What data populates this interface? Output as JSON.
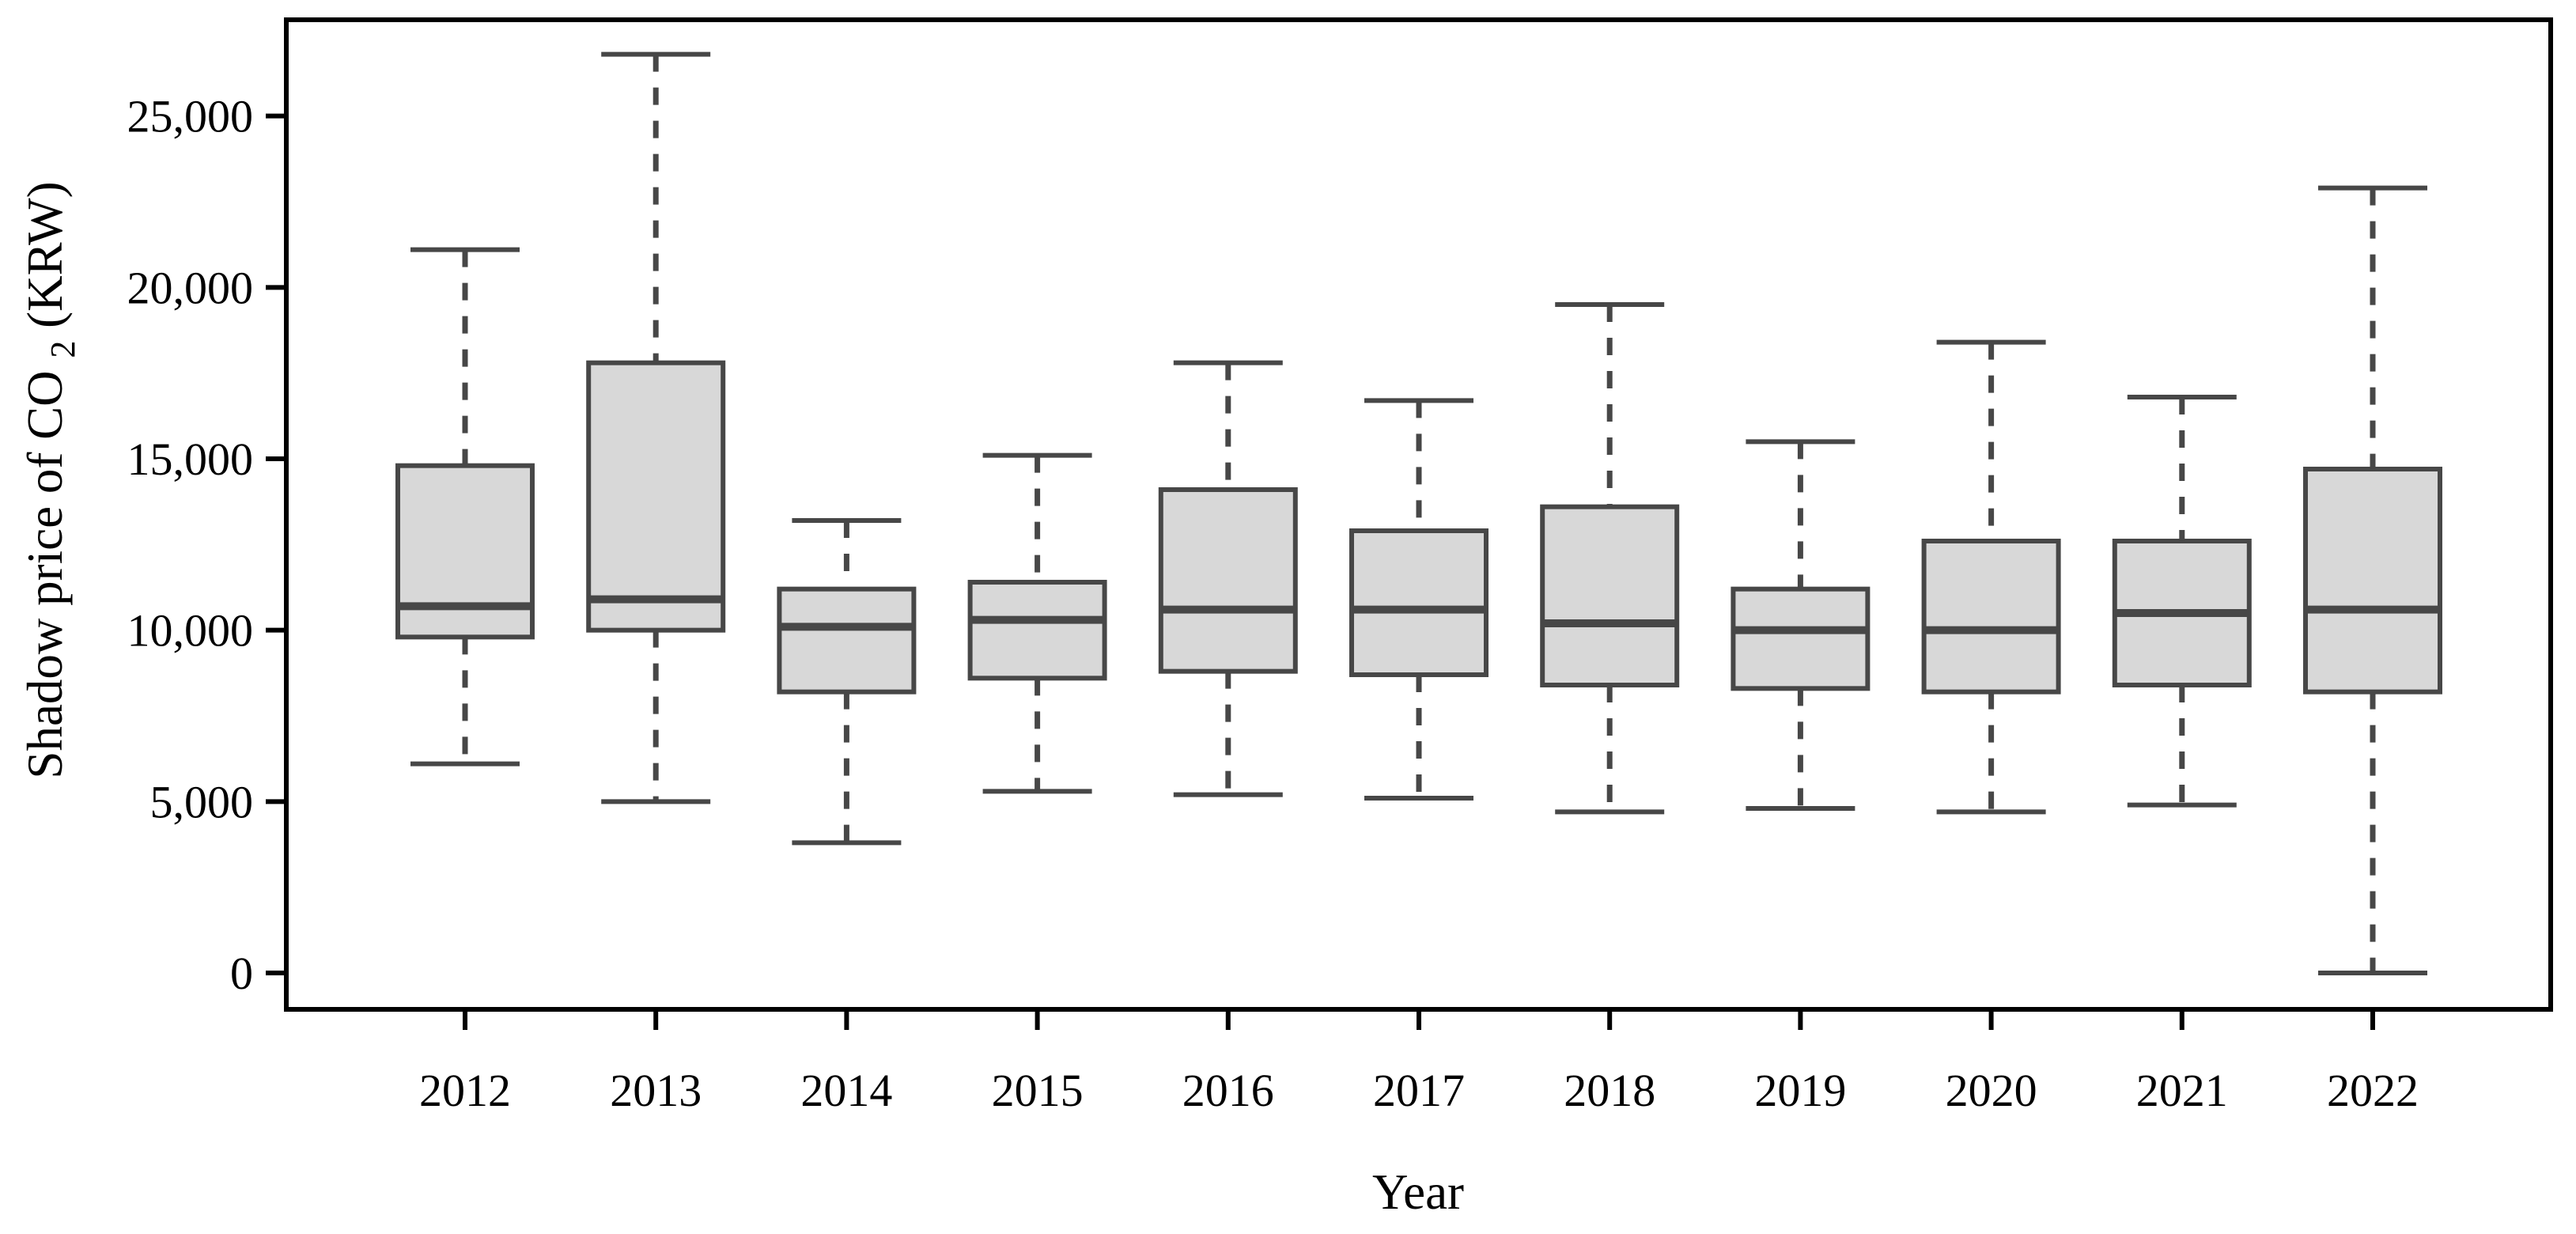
{
  "figure": {
    "background": "#ffffff"
  },
  "y_axis": {
    "title_prefix": "Shadow price of CO",
    "title_sub": "2",
    "title_suffix": " (KRW)",
    "ticks": [
      {
        "value": 0,
        "label": "0"
      },
      {
        "value": 5000,
        "label": "5,000"
      },
      {
        "value": 10000,
        "label": "10,000"
      },
      {
        "value": 15000,
        "label": "15,000"
      },
      {
        "value": 20000,
        "label": "20,000"
      },
      {
        "value": 25000,
        "label": "25,000"
      }
    ]
  },
  "x_axis": {
    "title": "Year"
  },
  "chart_data": {
    "type": "boxplot",
    "title": "",
    "xlabel": "Year",
    "ylabel": "Shadow price of CO2 (KRW)",
    "categories": [
      "2012",
      "2013",
      "2014",
      "2015",
      "2016",
      "2017",
      "2018",
      "2019",
      "2020",
      "2021",
      "2022"
    ],
    "series": [
      {
        "year": "2012",
        "min": 6100,
        "q1": 9800,
        "median": 10700,
        "q3": 14800,
        "max": 21100
      },
      {
        "year": "2013",
        "min": 5000,
        "q1": 10000,
        "median": 10900,
        "q3": 17800,
        "max": 26800
      },
      {
        "year": "2014",
        "min": 3800,
        "q1": 8200,
        "median": 10100,
        "q3": 11200,
        "max": 13200
      },
      {
        "year": "2015",
        "min": 5300,
        "q1": 8600,
        "median": 10300,
        "q3": 11400,
        "max": 15100
      },
      {
        "year": "2016",
        "min": 5200,
        "q1": 8800,
        "median": 10600,
        "q3": 14100,
        "max": 17800
      },
      {
        "year": "2017",
        "min": 5100,
        "q1": 8700,
        "median": 10600,
        "q3": 12900,
        "max": 16700
      },
      {
        "year": "2018",
        "min": 4700,
        "q1": 8400,
        "median": 10200,
        "q3": 13600,
        "max": 19500
      },
      {
        "year": "2019",
        "min": 4800,
        "q1": 8300,
        "median": 10000,
        "q3": 11200,
        "max": 15500
      },
      {
        "year": "2020",
        "min": 4700,
        "q1": 8200,
        "median": 10000,
        "q3": 12600,
        "max": 18400
      },
      {
        "year": "2021",
        "min": 4900,
        "q1": 8400,
        "median": 10500,
        "q3": 12600,
        "max": 16800
      },
      {
        "year": "2022",
        "min": 0,
        "q1": 8200,
        "median": 10600,
        "q3": 14700,
        "max": 22900
      }
    ],
    "ylim": [
      0,
      27800
    ],
    "yticks": [
      0,
      5000,
      10000,
      15000,
      20000,
      25000
    ],
    "grid": false,
    "legend": "none",
    "colors": {
      "box_fill": "#d8d8d8",
      "box_stroke": "#474747",
      "median": "#474747",
      "whisker": "#474747",
      "frame": "#000000",
      "text": "#000000"
    }
  }
}
